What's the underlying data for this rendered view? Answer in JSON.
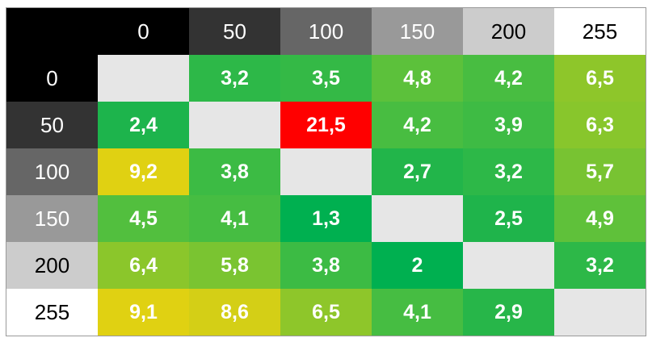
{
  "table": {
    "columns": [
      "0",
      "50",
      "100",
      "150",
      "200",
      "255"
    ],
    "rows": [
      {
        "label": "0",
        "cells": [
          null,
          "3,2",
          "3,5",
          "4,8",
          "4,2",
          "6,5"
        ]
      },
      {
        "label": "50",
        "cells": [
          "2,4",
          null,
          "21,5",
          "4,2",
          "3,9",
          "6,3"
        ]
      },
      {
        "label": "100",
        "cells": [
          "9,2",
          "3,8",
          null,
          "2,7",
          "3,2",
          "5,7"
        ]
      },
      {
        "label": "150",
        "cells": [
          "4,5",
          "4,1",
          "1,3",
          null,
          "2,5",
          "4,9"
        ]
      },
      {
        "label": "200",
        "cells": [
          "6,4",
          "5,8",
          "3,8",
          "2",
          null,
          "3,2"
        ]
      },
      {
        "label": "255",
        "cells": [
          "9,1",
          "8,6",
          "6,5",
          "4,1",
          "2,9",
          null
        ]
      }
    ],
    "corner_fill": "#000000",
    "header_fills": [
      "#000000",
      "#333333",
      "#666666",
      "#999999",
      "#cccccc",
      "#ffffff"
    ],
    "header_text_colors": [
      "#ffffff",
      "#ffffff",
      "#ffffff",
      "#ffffff",
      "#000000",
      "#000000"
    ],
    "empty_fill": "#e6e6e6",
    "cell_fills": [
      [
        null,
        "#2db848",
        "#34b946",
        "#5cc13b",
        "#48bd41",
        "#8ec62a"
      ],
      [
        "#1db44c",
        null,
        "#ff0000",
        "#48bd41",
        "#3ebb44",
        "#88c62c"
      ],
      [
        "#e0d112",
        "#3cbb44",
        null,
        "#22b54a",
        "#2db848",
        "#78c332"
      ],
      [
        "#52bf3e",
        "#46bd42",
        "#00b050",
        null,
        "#1fb44b",
        "#5fc13a"
      ],
      [
        "#8bc62b",
        "#7ac431",
        "#3cbb44",
        "#00b050",
        null,
        "#2db848"
      ],
      [
        "#e0d112",
        "#d4cf16",
        "#8ec62a",
        "#46bd42",
        "#27b649",
        null
      ]
    ]
  }
}
